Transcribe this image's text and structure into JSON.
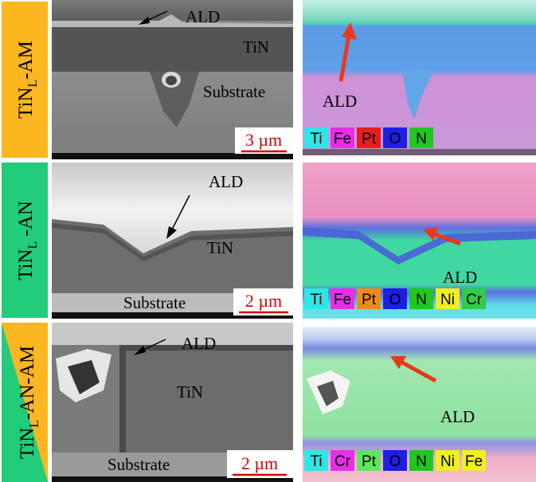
{
  "rows": [
    {
      "label": {
        "main": "TiN",
        "sub": "L",
        "suffix": "-AM"
      },
      "sem": {
        "labels": [
          "ALD",
          "TiN",
          "Substrate"
        ],
        "scale_bar": "3 µm"
      },
      "eds": {
        "label": "ALD",
        "legend": [
          {
            "element": "Ti",
            "color": "#2ee6e6"
          },
          {
            "element": "Fe",
            "color": "#e62ee6"
          },
          {
            "element": "Pt",
            "color": "#e61e1e"
          },
          {
            "element": "O",
            "color": "#1e1ee6"
          },
          {
            "element": "N",
            "color": "#1ec81e"
          }
        ]
      }
    },
    {
      "label": {
        "main": "TiN",
        "sub": "L",
        "suffix": " -AN"
      },
      "sem": {
        "labels": [
          "ALD",
          "TiN",
          "Substrate"
        ],
        "scale_bar": "2 µm"
      },
      "eds": {
        "label": "ALD",
        "legend": [
          {
            "element": "Ti",
            "color": "#2ee6e6"
          },
          {
            "element": "Fe",
            "color": "#e62ee6"
          },
          {
            "element": "Pt",
            "color": "#f08a1e"
          },
          {
            "element": "O",
            "color": "#1e1ee6"
          },
          {
            "element": "N",
            "color": "#1ec81e"
          },
          {
            "element": "Ni",
            "color": "#f0f01e"
          },
          {
            "element": "Cr",
            "color": "#2ecc4a"
          }
        ]
      }
    },
    {
      "label": {
        "main": "TiN",
        "sub": "L",
        "suffix": "-AN-AM"
      },
      "sem": {
        "labels": [
          "ALD",
          "TiN",
          "Substrate"
        ],
        "scale_bar": "2 µm"
      },
      "eds": {
        "label": "ALD",
        "legend": [
          {
            "element": "Ti",
            "color": "#2ee6e6"
          },
          {
            "element": "Cr",
            "color": "#e62ee6"
          },
          {
            "element": "Pt",
            "color": "#5ee65e"
          },
          {
            "element": "O",
            "color": "#1e1ee6"
          },
          {
            "element": "N",
            "color": "#1ec81e"
          },
          {
            "element": "Ni",
            "color": "#f0f01e"
          },
          {
            "element": "Fe",
            "color": "#f0f01e"
          }
        ]
      }
    }
  ]
}
